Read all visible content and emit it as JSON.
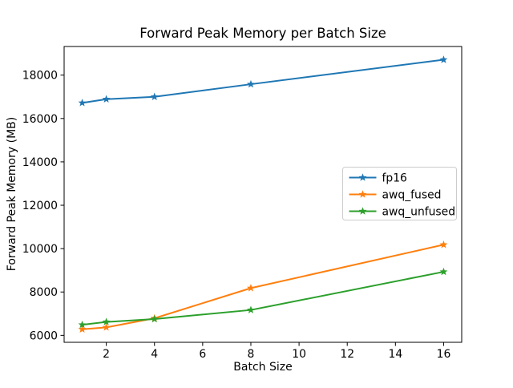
{
  "chart_data": {
    "type": "line",
    "title": "Forward Peak Memory per Batch Size",
    "xlabel": "Batch Size",
    "ylabel": "Forward Peak Memory (MB)",
    "x": [
      1,
      2,
      4,
      8,
      16
    ],
    "series": [
      {
        "name": "fp16",
        "color": "#1f77b4",
        "marker": "star",
        "values": [
          16720,
          16890,
          17000,
          17580,
          18710
        ]
      },
      {
        "name": "awq_fused",
        "color": "#ff7f0e",
        "marker": "star",
        "values": [
          6280,
          6370,
          6790,
          8180,
          10180
        ]
      },
      {
        "name": "awq_unfused",
        "color": "#2ca02c",
        "marker": "star",
        "values": [
          6490,
          6620,
          6750,
          7170,
          8930
        ]
      }
    ],
    "xticks": [
      2,
      4,
      6,
      8,
      10,
      12,
      14,
      16
    ],
    "yticks": [
      6000,
      8000,
      10000,
      12000,
      14000,
      16000,
      18000
    ],
    "xlim": [
      0.25,
      16.75
    ],
    "ylim": [
      5680,
      19320
    ],
    "grid": false,
    "legend_position": "center right",
    "background_color": "#ffffff",
    "frame_color": "#000000",
    "legend_border_color": "#cccccc"
  }
}
